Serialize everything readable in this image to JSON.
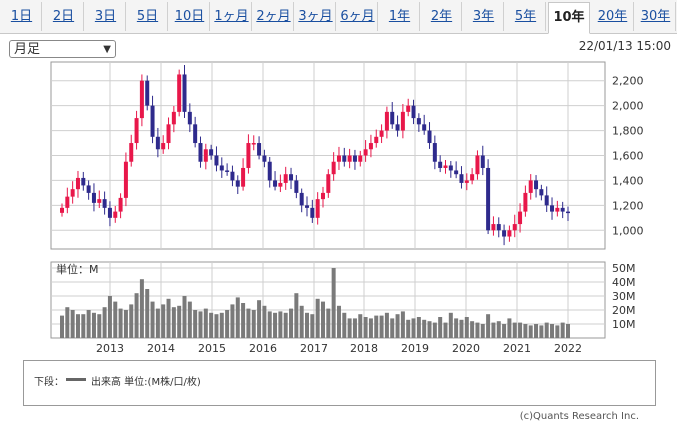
{
  "tabs": [
    {
      "label": "1日",
      "active": false
    },
    {
      "label": "2日",
      "active": false
    },
    {
      "label": "3日",
      "active": false
    },
    {
      "label": "5日",
      "active": false
    },
    {
      "label": "10日",
      "active": false
    },
    {
      "label": "1ヶ月",
      "active": false
    },
    {
      "label": "2ヶ月",
      "active": false
    },
    {
      "label": "3ヶ月",
      "active": false
    },
    {
      "label": "6ヶ月",
      "active": false
    },
    {
      "label": "1年",
      "active": false
    },
    {
      "label": "2年",
      "active": false
    },
    {
      "label": "3年",
      "active": false
    },
    {
      "label": "5年",
      "active": false
    },
    {
      "label": "10年",
      "active": true
    },
    {
      "label": "20年",
      "active": false
    },
    {
      "label": "30年",
      "active": false
    }
  ],
  "period_select": {
    "value": "月足"
  },
  "timestamp": "22/01/13 15:00",
  "legend": {
    "label": "下段：",
    "text": "出来高 単位:(M株/口/枚)"
  },
  "copyright": "(c)Quants Research Inc.",
  "colors": {
    "up": "#e8174a",
    "down": "#2e2a8c",
    "volume": "#7a7a7a",
    "grid": "#cfcfcf"
  },
  "chart_data": [
    {
      "type": "candlestick",
      "yticks": [
        "2,200",
        "2,000",
        "1,800",
        "1,600",
        "1,400",
        "1,200",
        "1,000"
      ],
      "ylim": [
        850,
        2350
      ],
      "xticks": [
        "2013",
        "2014",
        "2015",
        "2016",
        "2017",
        "2018",
        "2019",
        "2020",
        "2021",
        "2022"
      ],
      "grid": true,
      "closes": [
        1180,
        1270,
        1330,
        1420,
        1360,
        1300,
        1220,
        1250,
        1180,
        1100,
        1150,
        1260,
        1550,
        1700,
        1900,
        2200,
        2000,
        1750,
        1650,
        1700,
        1850,
        1950,
        2250,
        1950,
        1850,
        1700,
        1550,
        1650,
        1600,
        1520,
        1480,
        1470,
        1400,
        1350,
        1500,
        1700,
        1700,
        1600,
        1550,
        1400,
        1350,
        1380,
        1450,
        1400,
        1300,
        1200,
        1180,
        1100,
        1250,
        1300,
        1450,
        1550,
        1600,
        1550,
        1600,
        1550,
        1600,
        1650,
        1700,
        1750,
        1800,
        1950,
        1850,
        1800,
        1950,
        2000,
        1900,
        1850,
        1800,
        1700,
        1550,
        1500,
        1520,
        1480,
        1450,
        1380,
        1400,
        1450,
        1600,
        1500,
        1000,
        1050,
        1000,
        950,
        1000,
        1050,
        1150,
        1300,
        1400,
        1330,
        1280,
        1200,
        1150,
        1180,
        1150,
        1140
      ],
      "series": [
        {
          "name": "出来高",
          "type": "bar",
          "unit": "M",
          "yticks": [
            "50M",
            "40M",
            "30M",
            "20M",
            "10M"
          ],
          "ylim": [
            0,
            50
          ],
          "values": [
            16,
            22,
            20,
            17,
            17,
            20,
            18,
            17,
            22,
            30,
            26,
            21,
            20,
            24,
            32,
            42,
            35,
            26,
            21,
            24,
            28,
            22,
            23,
            30,
            26,
            20,
            19,
            21,
            18,
            17,
            18,
            20,
            24,
            29,
            25,
            21,
            20,
            27,
            23,
            19,
            18,
            19,
            18,
            21,
            32,
            23,
            18,
            17,
            28,
            26,
            21,
            50,
            23,
            18,
            14,
            14,
            17,
            15,
            14,
            16,
            16,
            18,
            14,
            17,
            19,
            13,
            14,
            15,
            13,
            12,
            11,
            15,
            11,
            18,
            14,
            13,
            15,
            12,
            11,
            10,
            17,
            11,
            12,
            10,
            14,
            11,
            11,
            10,
            9,
            10,
            9,
            11,
            10,
            9,
            11,
            10
          ]
        }
      ],
      "unit_label": "単位：M"
    }
  ]
}
